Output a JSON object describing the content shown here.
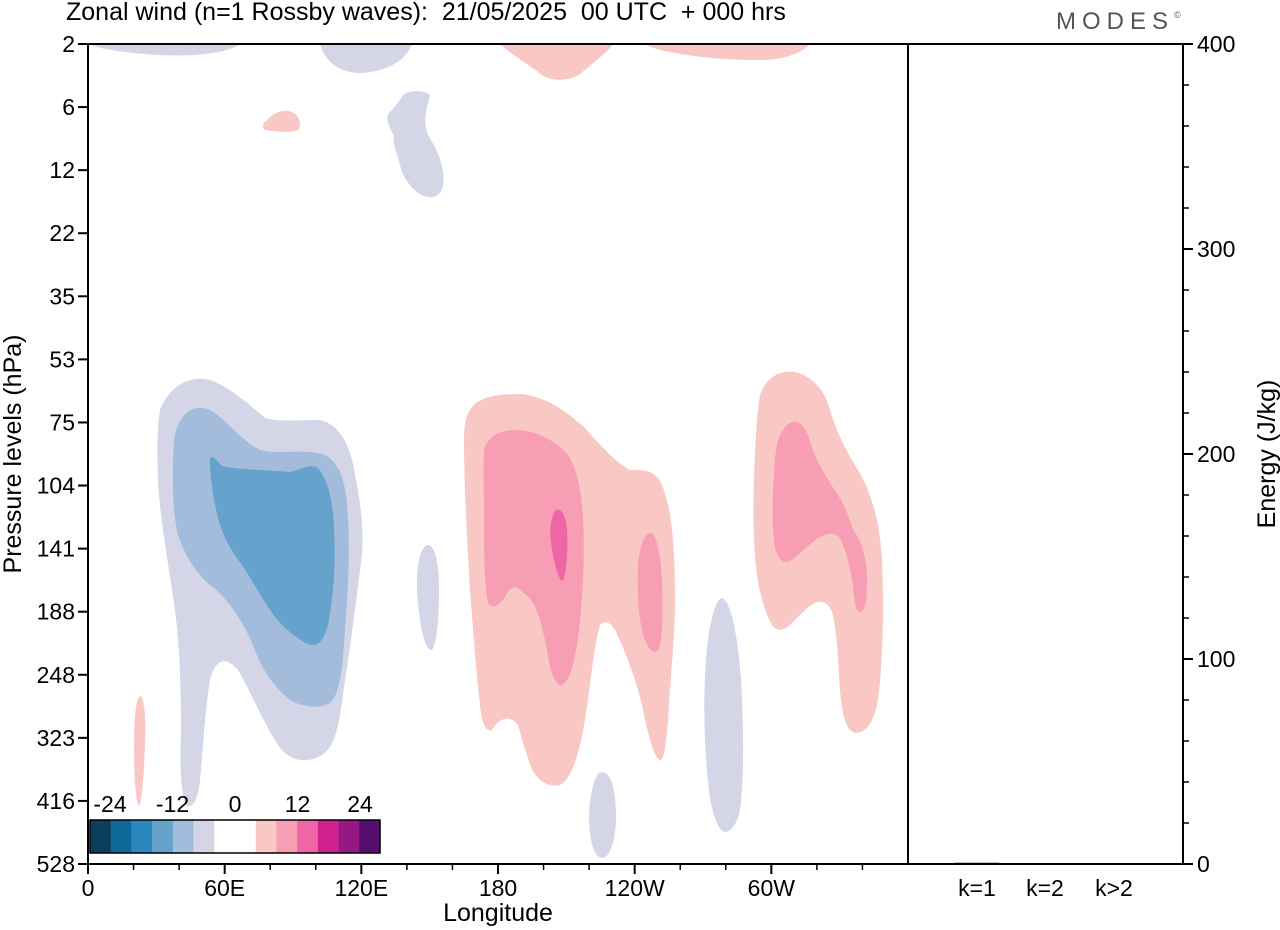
{
  "header": {
    "title": "Zonal wind (n=1 Rossby waves):  21/05/2025  00 UTC  + 000 hrs",
    "logo": "MODES",
    "logo_mark": "©"
  },
  "chart_data": [
    {
      "type": "heatmap",
      "title": "Zonal wind (n=1 Rossby waves):  21/05/2025  00 UTC  + 000 hrs",
      "xlabel": "Longitude",
      "ylabel": "Pressure levels (hPa)",
      "x_ticks": [
        "0",
        "60E",
        "120E",
        "180",
        "120W",
        "60W"
      ],
      "x_tick_values": [
        0,
        60,
        120,
        180,
        240,
        300
      ],
      "xlim": [
        0,
        360
      ],
      "y_ticks": [
        "2",
        "6",
        "12",
        "22",
        "35",
        "53",
        "75",
        "104",
        "141",
        "188",
        "248",
        "323",
        "416",
        "528"
      ],
      "y_scale": "pressure levels, inverted (top = 2 hPa)",
      "colorbar": {
        "tick_labels": [
          "-24",
          "-12",
          "0",
          "12",
          "24"
        ],
        "colors": [
          "#0b3f5c",
          "#0e6a9a",
          "#2a86be",
          "#65a3cd",
          "#a3bcdc",
          "#d4d5e7",
          "#ffffff",
          "#ffffff",
          "#f9c7c4",
          "#f79db4",
          "#ef66a6",
          "#d0218f",
          "#961883",
          "#560d6e"
        ]
      },
      "features": [
        {
          "sign": "negative",
          "center_lon": 62,
          "center_hpa": 150,
          "min_level": -12
        },
        {
          "sign": "positive",
          "center_lon": 195,
          "center_hpa": 130,
          "max_level": 12
        },
        {
          "sign": "positive",
          "center_lon": 305,
          "center_hpa": 120,
          "max_level": 8
        },
        {
          "sign": "positive",
          "center_lon": 241,
          "center_hpa": 160,
          "max_level": 8
        },
        {
          "sign": "negative",
          "center_lon": 140,
          "center_hpa": 8,
          "min_level": -4
        },
        {
          "sign": "negative",
          "center_lon": 279,
          "center_hpa": 300,
          "min_level": -4
        },
        {
          "sign": "negative",
          "center_lon": 147,
          "center_hpa": 165,
          "min_level": -4
        },
        {
          "sign": "negative",
          "center_lon": 226,
          "center_hpa": 470,
          "min_level": -4
        },
        {
          "sign": "positive",
          "center_lon": 22,
          "center_hpa": 340,
          "max_level": 4
        },
        {
          "sign": "positive",
          "center_lon": 83,
          "center_hpa": 7,
          "max_level": 4
        },
        {
          "sign": "positive",
          "center_lon": 205,
          "center_hpa": 3,
          "max_level": 4
        },
        {
          "sign": "positive",
          "center_lon": 287,
          "center_hpa": 2,
          "max_level": 4
        },
        {
          "sign": "negative",
          "center_lon": 47,
          "center_hpa": 2,
          "min_level": -4
        },
        {
          "sign": "negative",
          "center_lon": 112,
          "center_hpa": 3,
          "min_level": -4
        }
      ]
    },
    {
      "type": "bar",
      "ylabel": "Energy (J/kg)",
      "categories": [
        "k=1",
        "k=2",
        "k>2"
      ],
      "values": [
        0.6,
        0.2,
        0.3
      ],
      "ylim": [
        0,
        400
      ],
      "y_ticks": [
        "0",
        "100",
        "200",
        "300",
        "400"
      ]
    }
  ]
}
